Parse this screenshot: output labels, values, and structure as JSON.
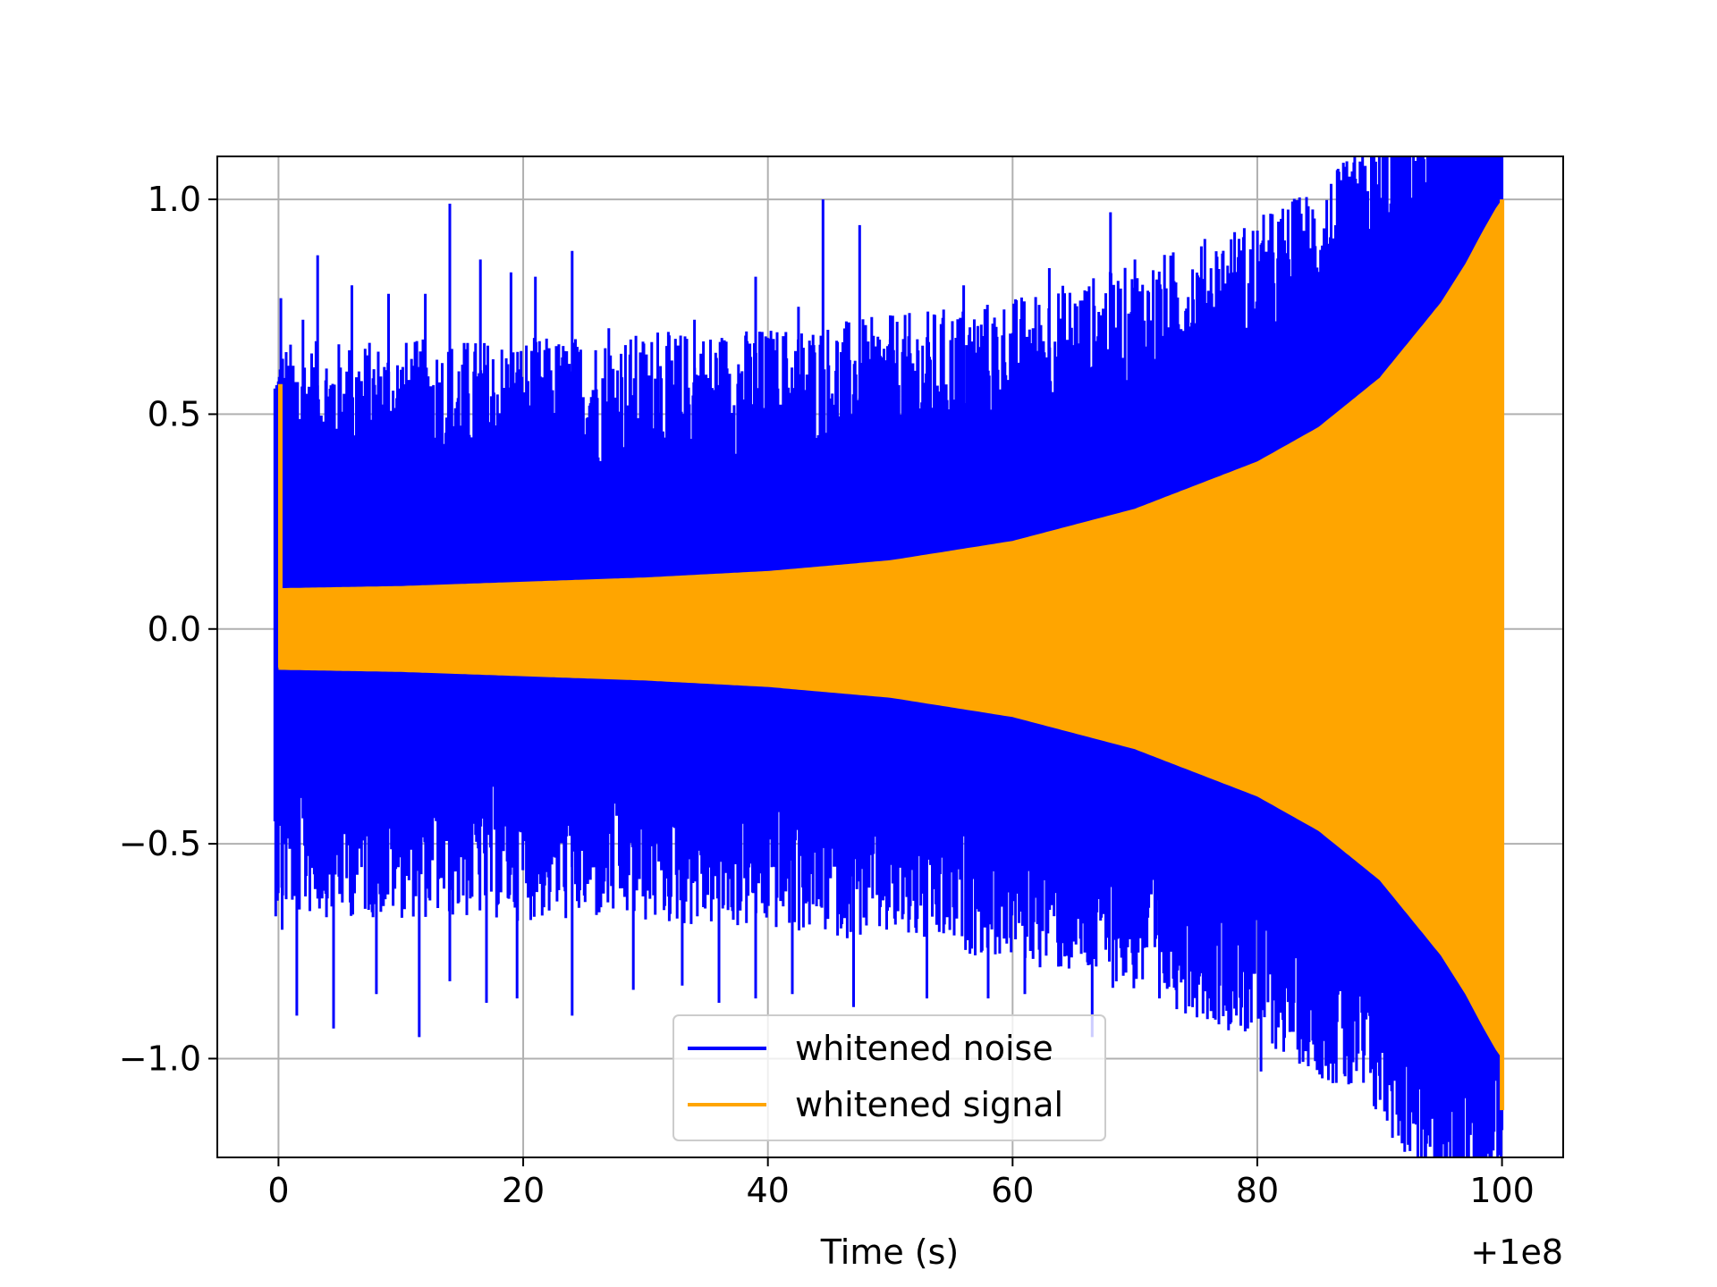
{
  "chart_data": {
    "type": "line",
    "title": "",
    "xlabel": "Time (s)",
    "ylabel": "",
    "x_offset_label": "+1e8",
    "xlim": [
      -5,
      105
    ],
    "ylim": [
      -1.23,
      1.1
    ],
    "x_ticks": [
      0,
      20,
      40,
      60,
      80,
      100
    ],
    "x_tick_labels": [
      "0",
      "20",
      "40",
      "60",
      "80",
      "100"
    ],
    "y_ticks": [
      -1.0,
      -0.5,
      0.0,
      0.5,
      1.0
    ],
    "y_tick_labels": [
      "−1.0",
      "−0.5",
      "0.0",
      "0.5",
      "1.0"
    ],
    "grid": true,
    "legend_position": "lower-center",
    "series": [
      {
        "name": "whitened noise",
        "color": "#0000ff",
        "x_range": [
          -0.3,
          100
        ],
        "note_shape": "dense noise; lower envelope follows signal envelope",
        "upper_envelope": [
          [
            0,
            0.1
          ],
          [
            10,
            0.105
          ],
          [
            20,
            0.11
          ],
          [
            30,
            0.12
          ],
          [
            40,
            0.135
          ],
          [
            50,
            0.16
          ],
          [
            60,
            0.205
          ],
          [
            70,
            0.28
          ],
          [
            80,
            0.39
          ],
          [
            85,
            0.47
          ],
          [
            90,
            0.585
          ],
          [
            93,
            0.69
          ],
          [
            95,
            0.76
          ]
        ],
        "peaks_high": [
          [
            0.2,
            0.77
          ],
          [
            2,
            0.72
          ],
          [
            3.2,
            0.87
          ],
          [
            6,
            0.8
          ],
          [
            9,
            0.78
          ],
          [
            12,
            0.78
          ],
          [
            14,
            0.99
          ],
          [
            16.5,
            0.86
          ],
          [
            19,
            0.83
          ],
          [
            21,
            0.82
          ],
          [
            24,
            0.88
          ],
          [
            27,
            0.7
          ],
          [
            31,
            0.69
          ],
          [
            34,
            0.72
          ],
          [
            39,
            0.82
          ],
          [
            42.5,
            0.75
          ],
          [
            44.5,
            1.0
          ],
          [
            47.5,
            0.94
          ],
          [
            50,
            0.73
          ],
          [
            56,
            0.8
          ],
          [
            63,
            0.84
          ],
          [
            68,
            0.97
          ],
          [
            70,
            0.86
          ],
          [
            73,
            0.84
          ],
          [
            78,
            0.83
          ],
          [
            82,
            0.86
          ],
          [
            87,
            0.94
          ],
          [
            92,
            0.93
          ],
          [
            95,
            0.77
          ]
        ],
        "peaks_low": [
          [
            0.3,
            -0.7
          ],
          [
            1.5,
            -0.9
          ],
          [
            4.5,
            -0.93
          ],
          [
            8,
            -0.85
          ],
          [
            11.5,
            -0.95
          ],
          [
            14,
            -0.82
          ],
          [
            17,
            -0.87
          ],
          [
            19.5,
            -0.86
          ],
          [
            24,
            -0.9
          ],
          [
            29,
            -0.84
          ],
          [
            33,
            -0.83
          ],
          [
            36,
            -0.87
          ],
          [
            39,
            -0.86
          ],
          [
            42,
            -0.85
          ],
          [
            47,
            -0.88
          ],
          [
            53,
            -0.86
          ],
          [
            58,
            -0.86
          ],
          [
            61,
            -0.85
          ],
          [
            66.5,
            -0.95
          ],
          [
            72,
            -0.86
          ],
          [
            76,
            -0.86
          ],
          [
            80.3,
            -1.03
          ],
          [
            83,
            -0.87
          ],
          [
            87,
            -0.84
          ],
          [
            90,
            -0.85
          ],
          [
            95,
            -0.88
          ]
        ]
      },
      {
        "name": "whitened signal",
        "color": "#ffa500",
        "x_range": [
          -0.3,
          100
        ],
        "envelope": [
          [
            0,
            0.095
          ],
          [
            10,
            0.1
          ],
          [
            20,
            0.11
          ],
          [
            30,
            0.12
          ],
          [
            40,
            0.135
          ],
          [
            50,
            0.16
          ],
          [
            60,
            0.205
          ],
          [
            70,
            0.28
          ],
          [
            80,
            0.39
          ],
          [
            85,
            0.47
          ],
          [
            90,
            0.585
          ],
          [
            93,
            0.69
          ],
          [
            95,
            0.76
          ],
          [
            97,
            0.85
          ],
          [
            98.5,
            0.93
          ],
          [
            99.5,
            0.98
          ],
          [
            100,
            1.0
          ]
        ],
        "initial_spike": 0.57,
        "final_min": -1.12
      }
    ]
  }
}
